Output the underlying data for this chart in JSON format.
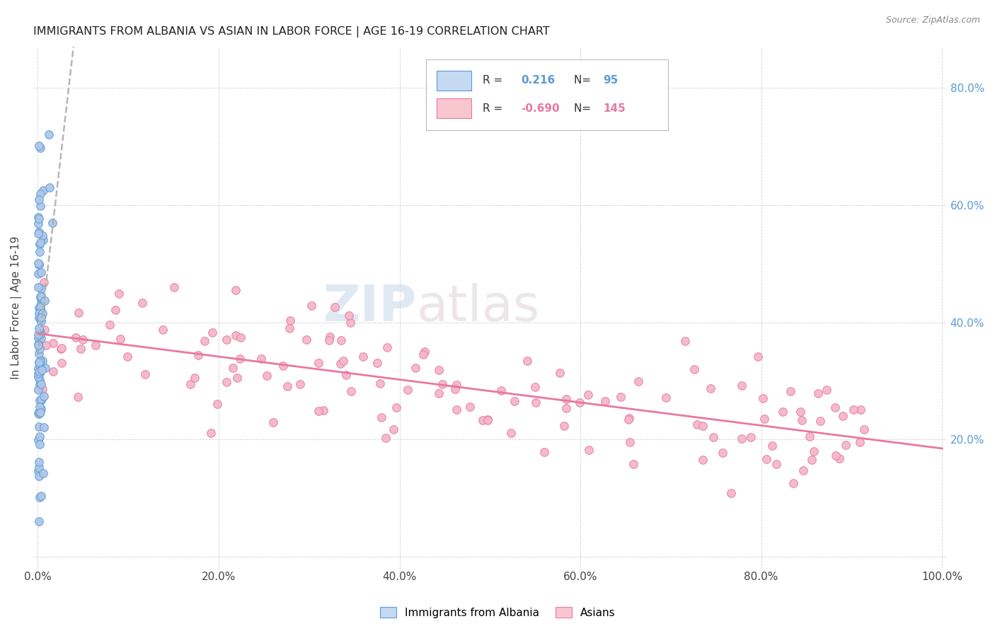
{
  "title": "IMMIGRANTS FROM ALBANIA VS ASIAN IN LABOR FORCE | AGE 16-19 CORRELATION CHART",
  "source": "Source: ZipAtlas.com",
  "ylabel": "In Labor Force | Age 16-19",
  "albania_color": "#aec6e8",
  "albania_edge_color": "#5b9bd5",
  "asian_color": "#f4b8c8",
  "asian_edge_color": "#e8799e",
  "albania_R": 0.216,
  "albania_N": 95,
  "asian_R": -0.69,
  "asian_N": 145,
  "albania_line_color": "#aaaaaa",
  "asian_line_color": "#e8799e",
  "background_color": "#ffffff",
  "grid_color": "#cccccc",
  "legend_box_color_albania": "#c5d9f1",
  "legend_box_color_asian": "#f9c6d0",
  "title_color": "#222222",
  "label_color": "#444444",
  "right_tick_color": "#5b9bd5"
}
